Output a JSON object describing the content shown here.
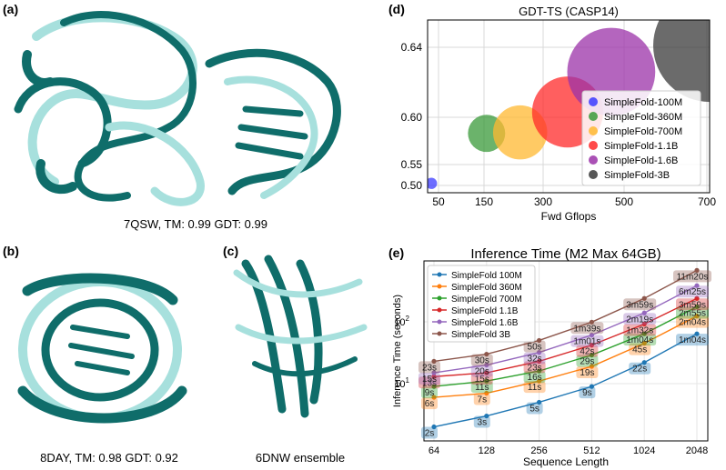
{
  "panels": {
    "a": {
      "label": "(a)",
      "caption": "7QSW, TM: 0.99 GDT: 0.99"
    },
    "b": {
      "label": "(b)",
      "caption": "8DAY, TM: 0.98 GDT: 0.92"
    },
    "c": {
      "label": "(c)",
      "caption": "6DNW ensemble"
    },
    "d": {
      "label": "(d)"
    },
    "e": {
      "label": "(e)"
    }
  },
  "colors": {
    "teal_dark": "#0f6d6a",
    "teal_light": "#a7e0dd"
  },
  "chart_data": [
    {
      "type": "scatter",
      "title": "GDT-TS (CASP14)",
      "xlabel": "Fwd Gflops",
      "ylabel": "",
      "grid": true,
      "legend": "right",
      "xticks": [
        "50",
        "150",
        "300",
        "500",
        "700"
      ],
      "yticks": [
        "0.50",
        "0.55",
        "0.60",
        "0.64"
      ],
      "xscale": "sqrt",
      "series": [
        {
          "name": "SimpleFold-100M",
          "x": 28,
          "y": 0.505,
          "size": 10,
          "color": "#3b3bff"
        },
        {
          "name": "SimpleFold-360M",
          "x": 90,
          "y": 0.583,
          "size": 33,
          "color": "#3a9a3a"
        },
        {
          "name": "SimpleFold-700M",
          "x": 145,
          "y": 0.584,
          "size": 48,
          "color": "#ffb830"
        },
        {
          "name": "SimpleFold-1.1B",
          "x": 245,
          "y": 0.603,
          "size": 63,
          "color": "#ff2a2a"
        },
        {
          "name": "SimpleFold-1.6B",
          "x": 360,
          "y": 0.626,
          "size": 78,
          "color": "#9b32a8"
        },
        {
          "name": "SimpleFold-3B",
          "x": 700,
          "y": 0.641,
          "size": 100,
          "color": "#3a3a3a"
        }
      ]
    },
    {
      "type": "line",
      "title": "Inference Time (M2 Max 64GB)",
      "xlabel": "Sequence Length",
      "ylabel": "Inference Time (seconds)",
      "xscale": "log2",
      "yscale": "log",
      "grid": true,
      "legend": "top-left",
      "x": [
        64,
        128,
        256,
        512,
        1024,
        2048
      ],
      "xticks": [
        "64",
        "128",
        "256",
        "512",
        "1024",
        "2048"
      ],
      "yticks": [
        {
          "label": "10",
          "sup": "1",
          "value": 10
        },
        {
          "label": "10",
          "sup": "2",
          "value": 100
        }
      ],
      "series": [
        {
          "name": "SimpleFold 100M",
          "color": "#1f77b4",
          "values": [
            2,
            3,
            5,
            9,
            22,
            64
          ],
          "labels": [
            "2s",
            "3s",
            "5s",
            "9s",
            "22s",
            "1m04s"
          ]
        },
        {
          "name": "SimpleFold 360M",
          "color": "#ff7f0e",
          "values": [
            6,
            7,
            11,
            19,
            45,
            124
          ],
          "labels": [
            "6s",
            "7s",
            "11s",
            "19s",
            "45s",
            "2m04s"
          ]
        },
        {
          "name": "SimpleFold 700M",
          "color": "#2ca02c",
          "values": [
            9,
            11,
            16,
            29,
            64,
            175
          ],
          "labels": [
            "9s",
            "11s",
            "16s",
            "29s",
            "1m04s",
            "2m55s"
          ]
        },
        {
          "name": "SimpleFold 1.1B",
          "color": "#d62728",
          "values": [
            13,
            15,
            23,
            42,
            92,
            239
          ],
          "labels": [
            "13s",
            "15s",
            "23s",
            "42s",
            "1m32s",
            "3m59s"
          ]
        },
        {
          "name": "SimpleFold 1.6B",
          "color": "#9467bd",
          "values": [
            15,
            20,
            32,
            61,
            139,
            385
          ],
          "labels": [
            "15s",
            "20s",
            "32s",
            "1m01s",
            "2m19s",
            "6m25s"
          ]
        },
        {
          "name": "SimpleFold 3B",
          "color": "#8c564b",
          "values": [
            23,
            30,
            50,
            99,
            239,
            680
          ],
          "labels": [
            "23s",
            "30s",
            "50s",
            "1m39s",
            "3m59s",
            "11m20s"
          ]
        }
      ]
    }
  ]
}
